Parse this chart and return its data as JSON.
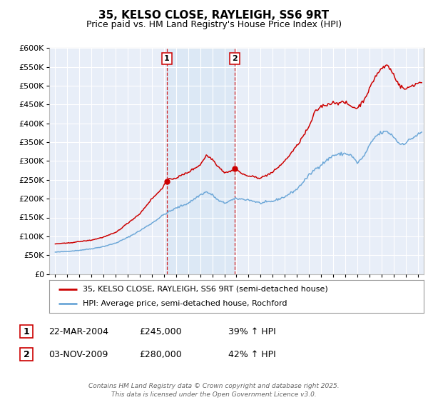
{
  "title": "35, KELSO CLOSE, RAYLEIGH, SS6 9RT",
  "subtitle": "Price paid vs. HM Land Registry's House Price Index (HPI)",
  "legend_line1": "35, KELSO CLOSE, RAYLEIGH, SS6 9RT (semi-detached house)",
  "legend_line2": "HPI: Average price, semi-detached house, Rochford",
  "footer": "Contains HM Land Registry data © Crown copyright and database right 2025.\nThis data is licensed under the Open Government Licence v3.0.",
  "sale1_date": "22-MAR-2004",
  "sale1_price": 245000,
  "sale1_hpi": "39% ↑ HPI",
  "sale2_date": "03-NOV-2009",
  "sale2_price": 280000,
  "sale2_hpi": "42% ↑ HPI",
  "sale1_x": 2004.22,
  "sale2_x": 2009.83,
  "hpi_color": "#6ea8d8",
  "price_color": "#cc0000",
  "highlight_color": "#dce8f5",
  "background_color": "#e8eef8",
  "fig_bg": "#ffffff",
  "ylim": [
    0,
    600000
  ],
  "yticks": [
    0,
    50000,
    100000,
    150000,
    200000,
    250000,
    300000,
    350000,
    400000,
    450000,
    500000,
    550000,
    600000
  ],
  "xlim": [
    1994.5,
    2025.5
  ],
  "hpi_anchors_x": [
    1995.0,
    1996.0,
    1997.0,
    1998.0,
    1999.0,
    2000.0,
    2001.0,
    2002.0,
    2003.0,
    2004.0,
    2005.0,
    2006.0,
    2007.0,
    2007.5,
    2008.0,
    2008.5,
    2009.0,
    2009.5,
    2010.0,
    2011.0,
    2012.0,
    2013.0,
    2014.0,
    2015.0,
    2016.0,
    2016.5,
    2017.0,
    2018.0,
    2019.0,
    2019.5,
    2020.0,
    2020.5,
    2021.0,
    2021.5,
    2022.0,
    2022.5,
    2023.0,
    2023.5,
    2024.0,
    2024.5,
    2025.3
  ],
  "hpi_anchors_y": [
    58000,
    60000,
    63000,
    67000,
    73000,
    82000,
    97000,
    115000,
    135000,
    158000,
    175000,
    188000,
    210000,
    218000,
    210000,
    195000,
    188000,
    195000,
    200000,
    197000,
    188000,
    193000,
    205000,
    225000,
    262000,
    278000,
    290000,
    315000,
    320000,
    315000,
    295000,
    310000,
    340000,
    365000,
    375000,
    378000,
    365000,
    345000,
    348000,
    360000,
    375000
  ],
  "price_anchors_x": [
    1995.0,
    1996.0,
    1997.0,
    1998.0,
    1999.0,
    2000.0,
    2001.0,
    2002.0,
    2003.0,
    2003.5,
    2004.0,
    2004.22,
    2004.5,
    2005.0,
    2006.0,
    2007.0,
    2007.5,
    2008.0,
    2008.5,
    2009.0,
    2009.5,
    2009.83,
    2010.0,
    2010.5,
    2011.0,
    2012.0,
    2013.0,
    2014.0,
    2015.0,
    2016.0,
    2016.5,
    2017.0,
    2018.0,
    2019.0,
    2019.5,
    2020.0,
    2020.5,
    2021.0,
    2021.5,
    2022.0,
    2022.5,
    2023.0,
    2023.5,
    2024.0,
    2024.5,
    2025.3
  ],
  "price_anchors_y": [
    80000,
    82000,
    86000,
    90000,
    98000,
    110000,
    135000,
    160000,
    200000,
    215000,
    235000,
    245000,
    252000,
    255000,
    270000,
    290000,
    315000,
    305000,
    285000,
    270000,
    272000,
    280000,
    278000,
    265000,
    260000,
    255000,
    270000,
    300000,
    340000,
    390000,
    430000,
    445000,
    455000,
    455000,
    445000,
    440000,
    460000,
    490000,
    525000,
    545000,
    555000,
    530000,
    500000,
    490000,
    500000,
    510000
  ]
}
